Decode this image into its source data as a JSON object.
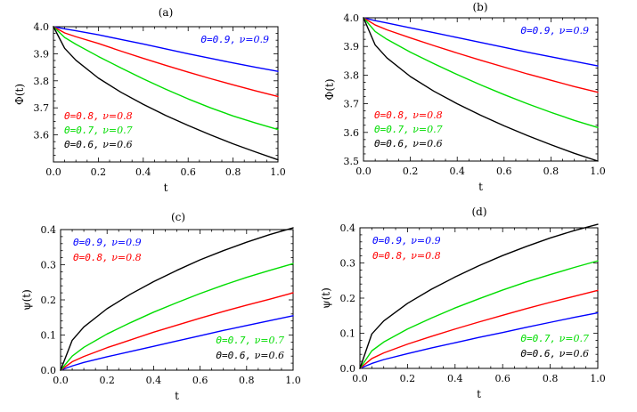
{
  "figure": {
    "layout": "2x2"
  },
  "chart_data": [
    {
      "panel": "(a)",
      "type": "line",
      "title": "(a)",
      "xlabel": "t",
      "ylabel": "Φ(t)",
      "xlim": [
        0.0,
        1.0
      ],
      "ylim": [
        3.5,
        4.0
      ],
      "xticks": [
        "0.0",
        "0.2",
        "0.4",
        "0.6",
        "0.8",
        "1.0"
      ],
      "xtick_values": [
        0.0,
        0.2,
        0.4,
        0.6,
        0.8,
        1.0
      ],
      "yticks": [
        "3.6",
        "3.7",
        "3.8",
        "3.9",
        "4.0"
      ],
      "ytick_values": [
        3.6,
        3.7,
        3.8,
        3.9,
        4.0
      ],
      "series": [
        {
          "name": "Θ=0.9, ν=0.9",
          "theta_text": "Θ=0.9,",
          "nu_text": "ν=0.9",
          "color": "#0000ff",
          "legend": "top-right",
          "x": [
            0,
            0.05,
            0.1,
            0.2,
            0.3,
            0.4,
            0.5,
            0.6,
            0.7,
            0.8,
            0.9,
            1.0
          ],
          "y": [
            4.0,
            3.992,
            3.985,
            3.97,
            3.953,
            3.936,
            3.918,
            3.9,
            3.883,
            3.866,
            3.85,
            3.835
          ]
        },
        {
          "name": "Θ=0.8, ν=0.8",
          "theta_text": "Θ=0.8,",
          "nu_text": "ν=0.8",
          "color": "#ff0000",
          "legend": "bottom-left",
          "x": [
            0,
            0.05,
            0.1,
            0.2,
            0.3,
            0.4,
            0.5,
            0.6,
            0.7,
            0.8,
            0.9,
            1.0
          ],
          "y": [
            4.0,
            3.977,
            3.963,
            3.938,
            3.91,
            3.883,
            3.857,
            3.832,
            3.808,
            3.785,
            3.763,
            3.742
          ]
        },
        {
          "name": "Θ=0.7, ν=0.7",
          "theta_text": "Θ=0.7,",
          "nu_text": "ν=0.7",
          "color": "#00dd00",
          "legend": "bottom-left",
          "x": [
            0,
            0.05,
            0.1,
            0.2,
            0.3,
            0.4,
            0.5,
            0.6,
            0.7,
            0.8,
            0.9,
            1.0
          ],
          "y": [
            4.0,
            3.96,
            3.935,
            3.89,
            3.848,
            3.807,
            3.769,
            3.733,
            3.7,
            3.67,
            3.644,
            3.62
          ]
        },
        {
          "name": "Θ=0.6, ν=0.6",
          "theta_text": "Θ=0.6,",
          "nu_text": "ν=0.6",
          "color": "#000000",
          "legend": "bottom-left",
          "x": [
            0,
            0.05,
            0.1,
            0.2,
            0.3,
            0.4,
            0.5,
            0.6,
            0.7,
            0.8,
            0.9,
            1.0
          ],
          "y": [
            4.0,
            3.92,
            3.876,
            3.81,
            3.758,
            3.713,
            3.672,
            3.635,
            3.6,
            3.567,
            3.537,
            3.508
          ]
        }
      ]
    },
    {
      "panel": "(b)",
      "type": "line",
      "title": "(b)",
      "xlabel": "t",
      "ylabel": "Φ(t)",
      "xlim": [
        0.0,
        1.0
      ],
      "ylim": [
        3.5,
        4.0
      ],
      "xticks": [
        "0.0",
        "0.2",
        "0.4",
        "0.6",
        "0.8",
        "1.0"
      ],
      "xtick_values": [
        0.0,
        0.2,
        0.4,
        0.6,
        0.8,
        1.0
      ],
      "yticks": [
        "3.5",
        "3.6",
        "3.7",
        "3.8",
        "3.9",
        "4.0"
      ],
      "ytick_values": [
        3.5,
        3.6,
        3.7,
        3.8,
        3.9,
        4.0
      ],
      "series": [
        {
          "name": "Θ=0.9, ν=0.9",
          "theta_text": "Θ=0.9,",
          "nu_text": "ν=0.9",
          "color": "#0000ff",
          "legend": "top-right",
          "x": [
            0,
            0.05,
            0.1,
            0.2,
            0.3,
            0.4,
            0.5,
            0.6,
            0.7,
            0.8,
            0.9,
            1.0
          ],
          "y": [
            4.0,
            3.99,
            3.982,
            3.965,
            3.948,
            3.931,
            3.914,
            3.897,
            3.88,
            3.864,
            3.848,
            3.832
          ]
        },
        {
          "name": "Θ=0.8, ν=0.8",
          "theta_text": "Θ=0.8,",
          "nu_text": "ν=0.8",
          "color": "#ff0000",
          "legend": "bottom-left",
          "x": [
            0,
            0.05,
            0.1,
            0.2,
            0.3,
            0.4,
            0.5,
            0.6,
            0.7,
            0.8,
            0.9,
            1.0
          ],
          "y": [
            4.0,
            3.975,
            3.958,
            3.93,
            3.903,
            3.877,
            3.852,
            3.828,
            3.804,
            3.782,
            3.76,
            3.74
          ]
        },
        {
          "name": "Θ=0.7, ν=0.7",
          "theta_text": "Θ=0.7,",
          "nu_text": "ν=0.7",
          "color": "#00dd00",
          "legend": "bottom-left",
          "x": [
            0,
            0.05,
            0.1,
            0.2,
            0.3,
            0.4,
            0.5,
            0.6,
            0.7,
            0.8,
            0.9,
            1.0
          ],
          "y": [
            4.0,
            3.952,
            3.925,
            3.88,
            3.84,
            3.802,
            3.766,
            3.732,
            3.7,
            3.67,
            3.642,
            3.617
          ]
        },
        {
          "name": "Θ=0.6, ν=0.6",
          "theta_text": "Θ=0.6,",
          "nu_text": "ν=0.6",
          "color": "#000000",
          "legend": "bottom-left",
          "x": [
            0,
            0.05,
            0.1,
            0.2,
            0.3,
            0.4,
            0.5,
            0.6,
            0.7,
            0.8,
            0.9,
            1.0
          ],
          "y": [
            4.0,
            3.905,
            3.86,
            3.795,
            3.744,
            3.7,
            3.66,
            3.623,
            3.589,
            3.557,
            3.527,
            3.5
          ]
        }
      ]
    },
    {
      "panel": "(c)",
      "type": "line",
      "title": "(c)",
      "xlabel": "t",
      "ylabel": "ψ(t)",
      "xlim": [
        0.0,
        1.0
      ],
      "ylim": [
        0.0,
        0.4
      ],
      "xticks": [
        "0.0",
        "0.2",
        "0.4",
        "0.6",
        "0.8",
        "1.0"
      ],
      "xtick_values": [
        0.0,
        0.2,
        0.4,
        0.6,
        0.8,
        1.0
      ],
      "yticks": [
        "0.0",
        "0.1",
        "0.2",
        "0.3",
        "0.4"
      ],
      "ytick_values": [
        0.0,
        0.1,
        0.2,
        0.3,
        0.4
      ],
      "series": [
        {
          "name": "Θ=0.9, ν=0.9",
          "theta_text": "Θ=0.9,",
          "nu_text": "ν=0.9",
          "color": "#0000ff",
          "legend": "top-left",
          "x": [
            0,
            0.05,
            0.1,
            0.2,
            0.3,
            0.4,
            0.5,
            0.6,
            0.7,
            0.8,
            0.9,
            1.0
          ],
          "y": [
            0.0,
            0.012,
            0.022,
            0.038,
            0.053,
            0.068,
            0.083,
            0.098,
            0.113,
            0.127,
            0.141,
            0.155
          ]
        },
        {
          "name": "Θ=0.8, ν=0.8",
          "theta_text": "Θ=0.8,",
          "nu_text": "ν=0.8",
          "color": "#ff0000",
          "legend": "top-left",
          "x": [
            0,
            0.05,
            0.1,
            0.2,
            0.3,
            0.4,
            0.5,
            0.6,
            0.7,
            0.8,
            0.9,
            1.0
          ],
          "y": [
            0.0,
            0.024,
            0.039,
            0.064,
            0.086,
            0.108,
            0.128,
            0.148,
            0.167,
            0.185,
            0.202,
            0.22
          ]
        },
        {
          "name": "Θ=0.7, ν=0.7",
          "theta_text": "Θ=0.7,",
          "nu_text": "ν=0.7",
          "color": "#00dd00",
          "legend": "bottom-right",
          "x": [
            0,
            0.05,
            0.1,
            0.2,
            0.3,
            0.4,
            0.5,
            0.6,
            0.7,
            0.8,
            0.9,
            1.0
          ],
          "y": [
            0.0,
            0.04,
            0.065,
            0.103,
            0.135,
            0.165,
            0.192,
            0.218,
            0.242,
            0.264,
            0.284,
            0.303
          ]
        },
        {
          "name": "Θ=0.6, ν=0.6",
          "theta_text": "Θ=0.6,",
          "nu_text": "ν=0.6",
          "color": "#000000",
          "legend": "bottom-right",
          "x": [
            0,
            0.05,
            0.1,
            0.2,
            0.3,
            0.4,
            0.5,
            0.6,
            0.7,
            0.8,
            0.9,
            1.0
          ],
          "y": [
            0.0,
            0.085,
            0.123,
            0.175,
            0.216,
            0.252,
            0.284,
            0.314,
            0.34,
            0.364,
            0.386,
            0.405
          ]
        }
      ]
    },
    {
      "panel": "(d)",
      "type": "line",
      "title": "(d)",
      "xlabel": "t",
      "ylabel": "ψ(t)",
      "xlim": [
        0.0,
        1.0
      ],
      "ylim": [
        0.0,
        0.4
      ],
      "xticks": [
        "0.0",
        "0.2",
        "0.4",
        "0.6",
        "0.8",
        "1.0"
      ],
      "xtick_values": [
        0.0,
        0.2,
        0.4,
        0.6,
        0.8,
        1.0
      ],
      "yticks": [
        "0.0",
        "0.1",
        "0.2",
        "0.3",
        "0.4"
      ],
      "ytick_values": [
        0.0,
        0.1,
        0.2,
        0.3,
        0.4
      ],
      "series": [
        {
          "name": "Θ=0.9, ν=0.9",
          "theta_text": "Θ=0.9,",
          "nu_text": "ν=0.9",
          "color": "#0000ff",
          "legend": "top-left",
          "x": [
            0,
            0.05,
            0.1,
            0.2,
            0.3,
            0.4,
            0.5,
            0.6,
            0.7,
            0.8,
            0.9,
            1.0
          ],
          "y": [
            0.0,
            0.014,
            0.025,
            0.042,
            0.058,
            0.073,
            0.088,
            0.102,
            0.117,
            0.131,
            0.145,
            0.158
          ]
        },
        {
          "name": "Θ=0.8, ν=0.8",
          "theta_text": "Θ=0.8,",
          "nu_text": "ν=0.8",
          "color": "#ff0000",
          "legend": "top-left",
          "x": [
            0,
            0.05,
            0.1,
            0.2,
            0.3,
            0.4,
            0.5,
            0.6,
            0.7,
            0.8,
            0.9,
            1.0
          ],
          "y": [
            0.0,
            0.028,
            0.044,
            0.069,
            0.091,
            0.112,
            0.132,
            0.151,
            0.17,
            0.188,
            0.205,
            0.222
          ]
        },
        {
          "name": "Θ=0.7, ν=0.7",
          "theta_text": "Θ=0.7,",
          "nu_text": "ν=0.7",
          "color": "#00dd00",
          "legend": "bottom-right",
          "x": [
            0,
            0.05,
            0.1,
            0.2,
            0.3,
            0.4,
            0.5,
            0.6,
            0.7,
            0.8,
            0.9,
            1.0
          ],
          "y": [
            0.0,
            0.05,
            0.075,
            0.112,
            0.143,
            0.172,
            0.198,
            0.223,
            0.246,
            0.267,
            0.287,
            0.306
          ]
        },
        {
          "name": "Θ=0.6, ν=0.6",
          "theta_text": "Θ=0.6,",
          "nu_text": "ν=0.6",
          "color": "#000000",
          "legend": "bottom-right",
          "x": [
            0,
            0.05,
            0.1,
            0.2,
            0.3,
            0.4,
            0.5,
            0.6,
            0.7,
            0.8,
            0.9,
            1.0
          ],
          "y": [
            0.0,
            0.098,
            0.135,
            0.185,
            0.225,
            0.26,
            0.292,
            0.321,
            0.347,
            0.371,
            0.392,
            0.41
          ]
        }
      ]
    }
  ]
}
